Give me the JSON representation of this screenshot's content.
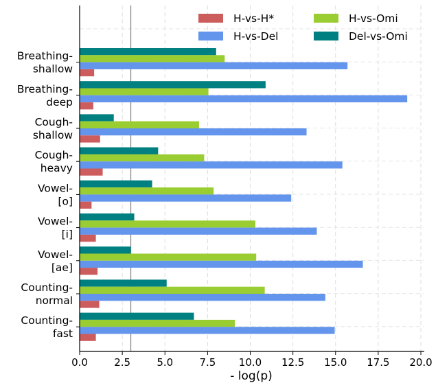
{
  "chart_data": {
    "type": "bar",
    "orientation": "horizontal",
    "title": "",
    "xlabel": "- log(p)",
    "ylabel": "",
    "xlim": [
      0,
      20.2
    ],
    "xticks": [
      "0.0",
      "2.5",
      "5.0",
      "7.5",
      "10.0",
      "12.5",
      "15.0",
      "17.5",
      "20.0"
    ],
    "grid": true,
    "legend_position": "top-right",
    "reference_line": {
      "value": 3.0
    },
    "categories": [
      [
        "Breathing-",
        "shallow"
      ],
      [
        "Breathing-",
        "deep"
      ],
      [
        "Cough-",
        "shallow"
      ],
      [
        "Cough-",
        "heavy"
      ],
      [
        "Vowel-",
        "[o]"
      ],
      [
        "Vowel-",
        "[i]"
      ],
      [
        "Vowel-",
        "[ae]"
      ],
      [
        "Counting-",
        "normal"
      ],
      [
        "Counting-",
        "fast"
      ]
    ],
    "series": [
      {
        "name": "Del-vs-Omi",
        "color": "#008080",
        "values": [
          8.0,
          10.9,
          2.0,
          4.6,
          4.25,
          3.2,
          3.0,
          5.1,
          6.7
        ]
      },
      {
        "name": "H-vs-Omi",
        "color": "#9ACD32",
        "values": [
          8.5,
          7.55,
          7.0,
          7.3,
          7.85,
          10.3,
          10.35,
          10.85,
          9.1
        ]
      },
      {
        "name": "H-vs-Del",
        "color": "#6495ED",
        "values": [
          15.7,
          19.2,
          13.3,
          15.4,
          12.4,
          13.9,
          16.6,
          14.4,
          14.95
        ]
      },
      {
        "name": "H-vs-H*",
        "color": "#CD5C5C",
        "values": [
          0.85,
          0.8,
          1.2,
          1.35,
          0.7,
          0.95,
          1.05,
          1.15,
          0.95
        ]
      }
    ],
    "legend_order": [
      "H-vs-H*",
      "H-vs-Omi",
      "H-vs-Del",
      "Del-vs-Omi"
    ]
  }
}
